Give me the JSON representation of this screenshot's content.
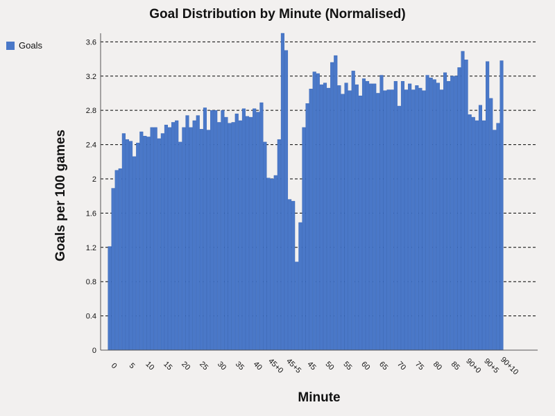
{
  "colors": {
    "bar": "#4a78c8",
    "bar_edge": "#2f5fb3",
    "grid": "#000000",
    "axis": "#555555"
  },
  "chart_data": {
    "type": "bar",
    "title": "Goal Distribution by Minute (Normalised)",
    "xlabel": "Minute",
    "ylabel": "Goals per 100 games",
    "ylim": [
      0,
      3.7
    ],
    "yticks": [
      "0",
      "0.4",
      "0.8",
      "1.2",
      "1.6",
      "2",
      "2.4",
      "2.8",
      "3.2",
      "3.6"
    ],
    "grid": "horizontal dashed",
    "legend_position": "top-left",
    "xtick_labels": [
      "0",
      "5",
      "10",
      "15",
      "20",
      "25",
      "30",
      "35",
      "40",
      "45+0",
      "45+5",
      "45",
      "50",
      "55",
      "60",
      "65",
      "70",
      "75",
      "80",
      "85",
      "90+0",
      "90+5",
      "90+10"
    ],
    "series": [
      {
        "name": "Goals",
        "values": [
          1.21,
          1.89,
          2.1,
          2.12,
          2.53,
          2.46,
          2.44,
          2.26,
          2.42,
          2.55,
          2.5,
          2.49,
          2.6,
          2.6,
          2.47,
          2.53,
          2.63,
          2.6,
          2.66,
          2.68,
          2.43,
          2.6,
          2.74,
          2.6,
          2.68,
          2.74,
          2.58,
          2.83,
          2.57,
          2.8,
          2.8,
          2.66,
          2.8,
          2.72,
          2.65,
          2.66,
          2.76,
          2.68,
          2.82,
          2.73,
          2.72,
          2.82,
          2.78,
          2.89,
          2.43,
          2.01,
          2.0,
          2.04,
          2.46,
          3.7,
          3.5,
          1.76,
          1.74,
          1.03,
          1.49,
          2.6,
          2.88,
          3.05,
          3.25,
          3.23,
          3.1,
          3.12,
          3.06,
          3.36,
          3.44,
          3.09,
          2.99,
          3.12,
          3.03,
          3.26,
          3.1,
          2.97,
          3.17,
          3.14,
          3.11,
          3.11,
          3.0,
          3.21,
          3.03,
          3.04,
          3.04,
          3.14,
          2.85,
          3.14,
          3.04,
          3.11,
          3.04,
          3.09,
          3.06,
          3.03,
          3.21,
          3.18,
          3.16,
          3.12,
          3.04,
          3.24,
          3.14,
          3.2,
          3.2,
          3.3,
          3.49,
          3.39,
          2.75,
          2.72,
          2.68,
          2.86,
          2.68,
          3.37,
          2.94,
          2.57,
          2.65,
          3.38
        ]
      }
    ]
  }
}
